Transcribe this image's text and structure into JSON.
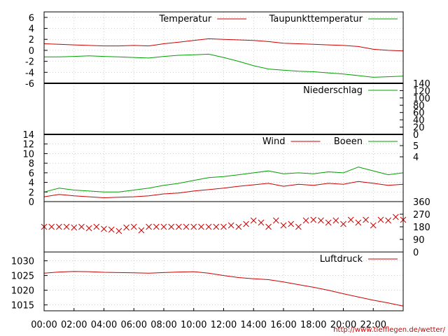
{
  "chart_data": [
    {
      "type": "line",
      "panel": "temperature",
      "ylim": [
        -6,
        7
      ],
      "yticks": [
        "6",
        "4",
        "2",
        "0",
        "-2",
        "-4",
        "-6"
      ],
      "grid": true,
      "legend_placement": "top-right",
      "series": [
        {
          "name": "Temperatur",
          "color": "#cc0000",
          "x": [
            0,
            1,
            2,
            3,
            4,
            5,
            6,
            7,
            8,
            9,
            10,
            11,
            12,
            13,
            14,
            15,
            16,
            17,
            18,
            19,
            20,
            21,
            22,
            23,
            24
          ],
          "y": [
            1.2,
            1.1,
            1.0,
            0.9,
            0.8,
            0.8,
            0.9,
            0.8,
            1.2,
            1.5,
            1.8,
            2.1,
            2.0,
            1.9,
            1.8,
            1.6,
            1.3,
            1.2,
            1.1,
            1.0,
            0.9,
            0.7,
            0.2,
            0.0,
            -0.1
          ]
        },
        {
          "name": "Taupunkttemperatur",
          "color": "#00a000",
          "x": [
            0,
            1,
            2,
            3,
            4,
            5,
            6,
            7,
            8,
            9,
            10,
            11,
            12,
            13,
            14,
            15,
            16,
            17,
            18,
            19,
            20,
            21,
            22,
            23,
            24
          ],
          "y": [
            -1.2,
            -1.2,
            -1.1,
            -1.0,
            -1.1,
            -1.2,
            -1.3,
            -1.4,
            -1.1,
            -0.9,
            -0.8,
            -0.7,
            -1.3,
            -2.0,
            -2.8,
            -3.4,
            -3.6,
            -3.8,
            -3.9,
            -4.1,
            -4.3,
            -4.6,
            -4.9,
            -4.8,
            -4.7
          ]
        }
      ]
    },
    {
      "type": "line",
      "panel": "precipitation",
      "ylim": [
        0,
        140
      ],
      "yticks_right": [
        "140",
        "120",
        "100",
        "80",
        "60",
        "40",
        "20",
        "0"
      ],
      "legend_placement": "top-right",
      "series": [
        {
          "name": "Niederschlag",
          "color": "#00a000",
          "x": [
            0,
            24
          ],
          "y": [
            0,
            0
          ]
        }
      ]
    },
    {
      "type": "line",
      "panel": "wind",
      "ylim": [
        0,
        14
      ],
      "yticks": [
        "14",
        "12",
        "10",
        "8",
        "6",
        "4",
        "2",
        "0"
      ],
      "yticks_right": [
        "5",
        "4"
      ],
      "grid": true,
      "legend_placement": "top-right",
      "series": [
        {
          "name": "Wind",
          "color": "#cc0000",
          "x": [
            0,
            1,
            2,
            3,
            4,
            5,
            6,
            7,
            8,
            9,
            10,
            11,
            12,
            13,
            14,
            15,
            16,
            17,
            18,
            19,
            20,
            21,
            22,
            23,
            24
          ],
          "y": [
            1.0,
            1.5,
            1.2,
            1.0,
            0.8,
            0.9,
            1.0,
            1.2,
            1.6,
            1.8,
            2.2,
            2.5,
            2.8,
            3.2,
            3.5,
            3.8,
            3.2,
            3.6,
            3.4,
            3.8,
            3.6,
            4.2,
            3.8,
            3.4,
            3.6
          ]
        },
        {
          "name": "Boeen",
          "color": "#00a000",
          "x": [
            0,
            1,
            2,
            3,
            4,
            5,
            6,
            7,
            8,
            9,
            10,
            11,
            12,
            13,
            14,
            15,
            16,
            17,
            18,
            19,
            20,
            21,
            22,
            23,
            24
          ],
          "y": [
            2.0,
            2.8,
            2.4,
            2.2,
            2.0,
            2.0,
            2.4,
            2.8,
            3.4,
            3.8,
            4.4,
            5.0,
            5.2,
            5.6,
            6.0,
            6.4,
            5.8,
            6.0,
            5.8,
            6.2,
            6.0,
            7.2,
            6.4,
            5.6,
            6.0
          ]
        }
      ]
    },
    {
      "type": "scatter",
      "panel": "wind-direction",
      "ylim": [
        0,
        360
      ],
      "yticks_right": [
        "360",
        "270",
        "180",
        "90",
        "0"
      ],
      "series": [
        {
          "color": "#cc0000",
          "marker": "x",
          "x": [
            0,
            0.5,
            1,
            1.5,
            2,
            2.5,
            3,
            3.5,
            4,
            4.5,
            5,
            5.5,
            6,
            6.5,
            7,
            7.5,
            8,
            8.5,
            9,
            9.5,
            10,
            10.5,
            11,
            11.5,
            12,
            12.5,
            13,
            13.5,
            14,
            14.5,
            15,
            15.5,
            16,
            16.5,
            17,
            17.5,
            18,
            18.5,
            19,
            19.5,
            20,
            20.5,
            21,
            21.5,
            22,
            22.5,
            23,
            23.5,
            24
          ],
          "y": [
            180,
            180,
            180,
            180,
            175,
            180,
            170,
            180,
            165,
            160,
            150,
            175,
            180,
            155,
            180,
            180,
            180,
            180,
            180,
            180,
            180,
            180,
            180,
            180,
            180,
            190,
            180,
            200,
            225,
            210,
            180,
            225,
            190,
            200,
            180,
            225,
            230,
            225,
            210,
            225,
            200,
            230,
            210,
            230,
            190,
            230,
            225,
            250,
            230
          ]
        }
      ]
    },
    {
      "type": "line",
      "panel": "pressure",
      "ylim": [
        1013,
        1033
      ],
      "yticks": [
        "1030",
        "1025",
        "1020",
        "1015"
      ],
      "grid": true,
      "legend_placement": "top-right",
      "series": [
        {
          "name": "Luftdruck",
          "color": "#cc0000",
          "x": [
            0,
            1,
            2,
            3,
            4,
            5,
            6,
            7,
            8,
            9,
            10,
            11,
            12,
            13,
            14,
            15,
            16,
            17,
            18,
            19,
            20,
            21,
            22,
            23,
            24
          ],
          "y": [
            1025.8,
            1026.2,
            1026.4,
            1026.3,
            1026.1,
            1026.0,
            1025.9,
            1025.8,
            1026.0,
            1026.2,
            1026.3,
            1025.8,
            1025.0,
            1024.3,
            1023.9,
            1023.6,
            1022.8,
            1021.9,
            1021.0,
            1020.0,
            1018.8,
            1017.7,
            1016.6,
            1015.7,
            1014.6
          ]
        }
      ]
    }
  ],
  "x_axis": {
    "range": [
      0,
      24
    ],
    "tick_labels": [
      "00:00",
      "02:00",
      "04:00",
      "06:00",
      "08:00",
      "10:00",
      "12:00",
      "14:00",
      "16:00",
      "18:00",
      "20:00",
      "22:00"
    ],
    "tick_hours": [
      0,
      2,
      4,
      6,
      8,
      10,
      12,
      14,
      16,
      18,
      20,
      22
    ]
  },
  "footer": {
    "url": "http://www.tiefflegen.de/wetter/"
  }
}
